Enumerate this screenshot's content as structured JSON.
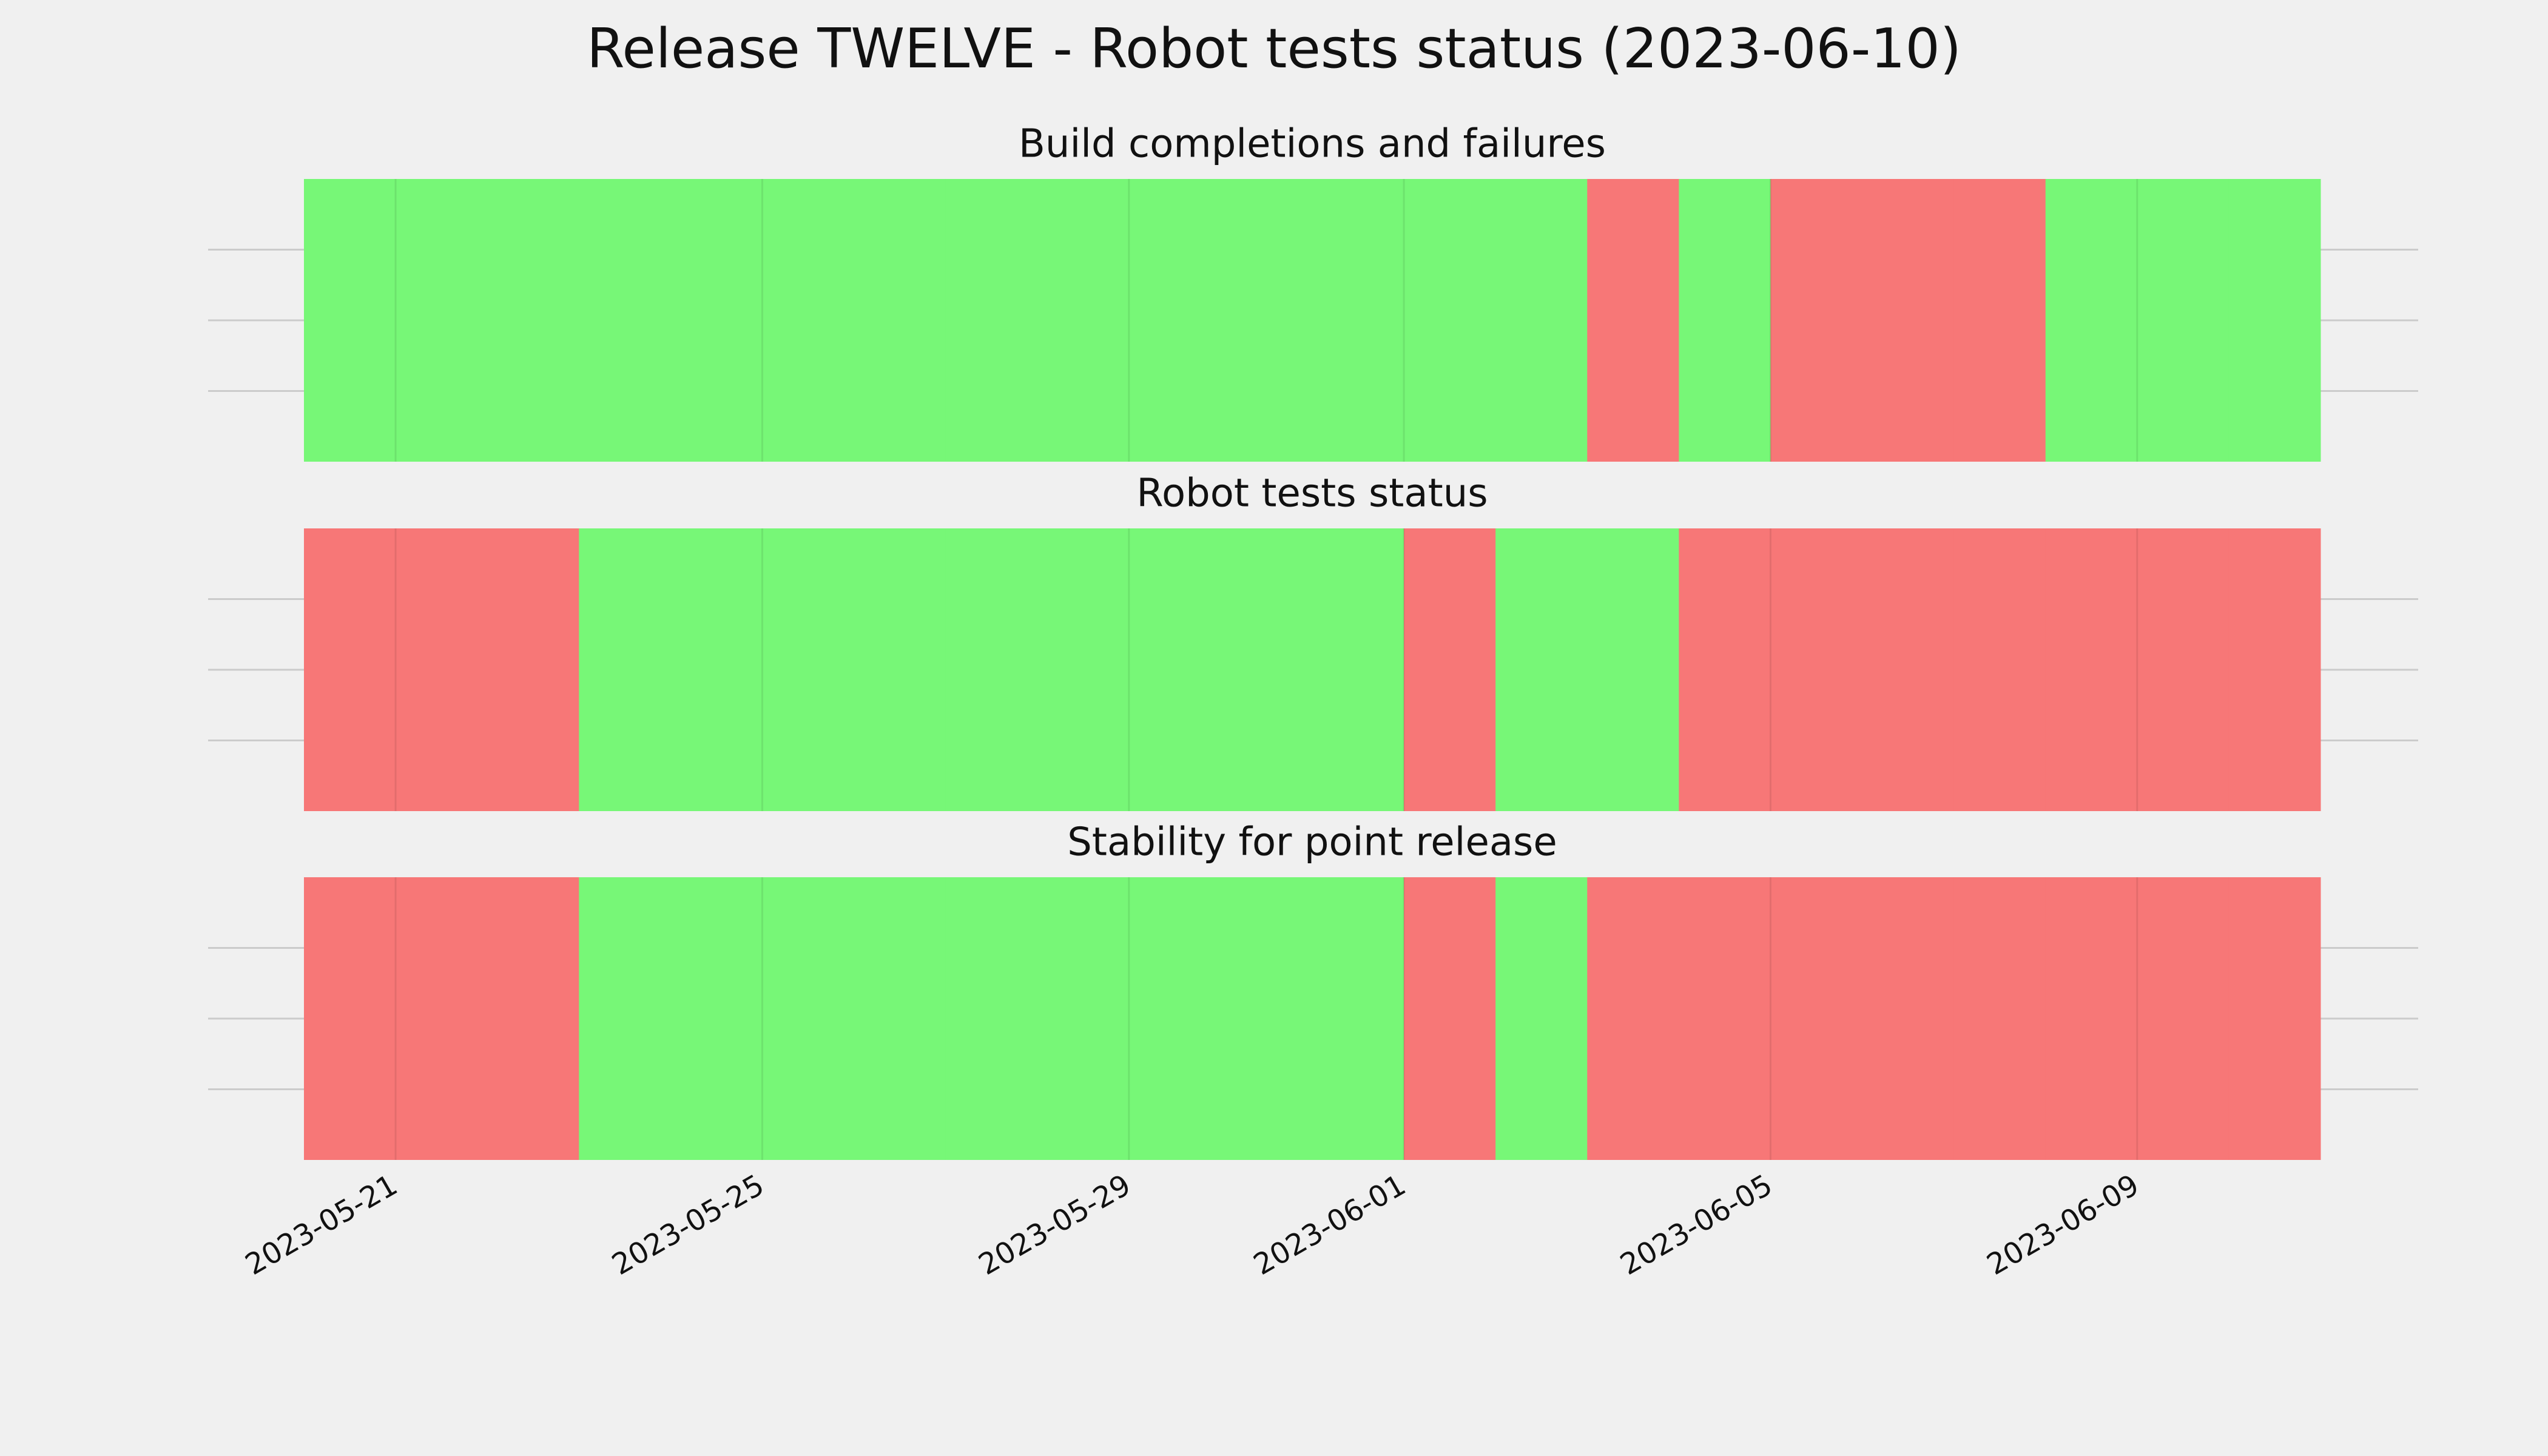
{
  "title": "Release TWELVE - Robot tests status (2023-06-10)",
  "x": [
    "2023-05-20",
    "2023-05-21",
    "2023-05-22",
    "2023-05-23",
    "2023-05-24",
    "2023-05-25",
    "2023-05-26",
    "2023-05-27",
    "2023-05-28",
    "2023-05-29",
    "2023-05-30",
    "2023-05-31",
    "2023-06-01",
    "2023-06-02",
    "2023-06-03",
    "2023-06-04",
    "2023-06-05",
    "2023-06-06",
    "2023-06-07",
    "2023-06-08",
    "2023-06-09",
    "2023-06-10"
  ],
  "xlim": [
    "2023-05-20",
    "2023-06-11"
  ],
  "xticks": [
    "2023-05-21",
    "2023-05-25",
    "2023-05-29",
    "2023-06-01",
    "2023-06-05",
    "2023-06-09"
  ],
  "ylim": [
    0,
    1
  ],
  "yticks": [
    0.25,
    0.5,
    0.75
  ],
  "grid": true,
  "status_colors": [
    "#f77777",
    "#77f777"
  ],
  "chart_data": [
    {
      "type": "timeline",
      "title": "Build completions and failures",
      "values": [
        1,
        1,
        1,
        1,
        1,
        1,
        1,
        1,
        1,
        1,
        1,
        1,
        1,
        1,
        0,
        1,
        0,
        0,
        0,
        1,
        1,
        1
      ]
    },
    {
      "type": "timeline",
      "title": "Robot tests status",
      "values": [
        0,
        0,
        0,
        1,
        1,
        1,
        1,
        1,
        1,
        1,
        1,
        1,
        0,
        1,
        1,
        0,
        0,
        0,
        0,
        0,
        0,
        0
      ]
    },
    {
      "type": "timeline",
      "title": "Stability for point release",
      "values": [
        0,
        0,
        0,
        1,
        1,
        1,
        1,
        1,
        1,
        1,
        1,
        1,
        0,
        1,
        0,
        0,
        0,
        0,
        0,
        0,
        0,
        0
      ]
    }
  ]
}
